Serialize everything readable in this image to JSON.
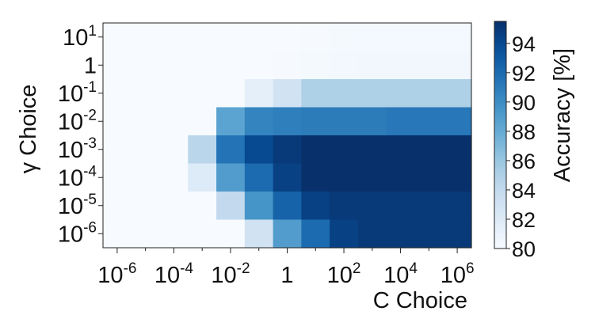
{
  "chart_data": {
    "type": "heatmap",
    "xlabel": "C Choice",
    "ylabel": "γ Choice",
    "colorbar_label": "Accuracy [%]",
    "colormap": "Blues",
    "color_range": [
      80,
      95.5
    ],
    "colorbar_ticks": [
      "80",
      "82",
      "84",
      "86",
      "88",
      "90",
      "92",
      "94"
    ],
    "x_tick_labels": [
      {
        "base": "10",
        "exp": "-6"
      },
      {
        "base": "10",
        "exp": "-4"
      },
      {
        "base": "10",
        "exp": "-2"
      },
      {
        "base": "1",
        "exp": ""
      },
      {
        "base": "10",
        "exp": "2"
      },
      {
        "base": "10",
        "exp": "4"
      },
      {
        "base": "10",
        "exp": "6"
      }
    ],
    "y_tick_labels": [
      {
        "base": "10",
        "exp": "1"
      },
      {
        "base": "1",
        "exp": ""
      },
      {
        "base": "10",
        "exp": "-1"
      },
      {
        "base": "10",
        "exp": "-2"
      },
      {
        "base": "10",
        "exp": "-3"
      },
      {
        "base": "10",
        "exp": "-4"
      },
      {
        "base": "10",
        "exp": "-5"
      },
      {
        "base": "10",
        "exp": "-6"
      }
    ],
    "x_values": [
      "1e-6",
      "1e-5",
      "1e-4",
      "1e-3",
      "1e-2",
      "1e-1",
      "1",
      "1e1",
      "1e2",
      "1e3",
      "1e4",
      "1e5",
      "1e6"
    ],
    "y_values": [
      "1e1",
      "1",
      "1e-1",
      "1e-2",
      "1e-3",
      "1e-4",
      "1e-5",
      "1e-6"
    ],
    "values": [
      [
        80.0,
        80.0,
        80.0,
        80.0,
        80.0,
        80.0,
        80.0,
        80.1,
        80.2,
        80.3,
        80.3,
        80.3,
        80.3
      ],
      [
        80.0,
        80.0,
        80.0,
        80.0,
        80.0,
        80.0,
        80.1,
        80.2,
        80.4,
        80.5,
        80.5,
        80.5,
        80.5
      ],
      [
        80.0,
        80.0,
        80.0,
        80.0,
        80.0,
        81.5,
        83.0,
        85.0,
        85.0,
        85.0,
        85.0,
        85.0,
        85.0
      ],
      [
        80.0,
        80.0,
        80.0,
        80.0,
        88.5,
        90.5,
        90.8,
        91.0,
        91.0,
        91.0,
        91.2,
        91.2,
        91.2
      ],
      [
        80.0,
        80.0,
        80.0,
        84.5,
        91.5,
        94.0,
        95.0,
        95.5,
        95.5,
        95.5,
        95.5,
        95.5,
        95.5
      ],
      [
        80.0,
        80.0,
        80.0,
        82.0,
        89.0,
        92.0,
        94.5,
        95.5,
        95.5,
        95.5,
        95.5,
        95.5,
        95.5
      ],
      [
        80.0,
        80.0,
        80.0,
        80.0,
        84.0,
        89.5,
        92.5,
        94.5,
        95.0,
        95.0,
        95.0,
        95.0,
        95.0
      ],
      [
        80.0,
        80.0,
        80.0,
        80.0,
        80.0,
        83.0,
        89.0,
        92.0,
        94.5,
        95.0,
        95.0,
        95.0,
        95.0
      ]
    ]
  }
}
